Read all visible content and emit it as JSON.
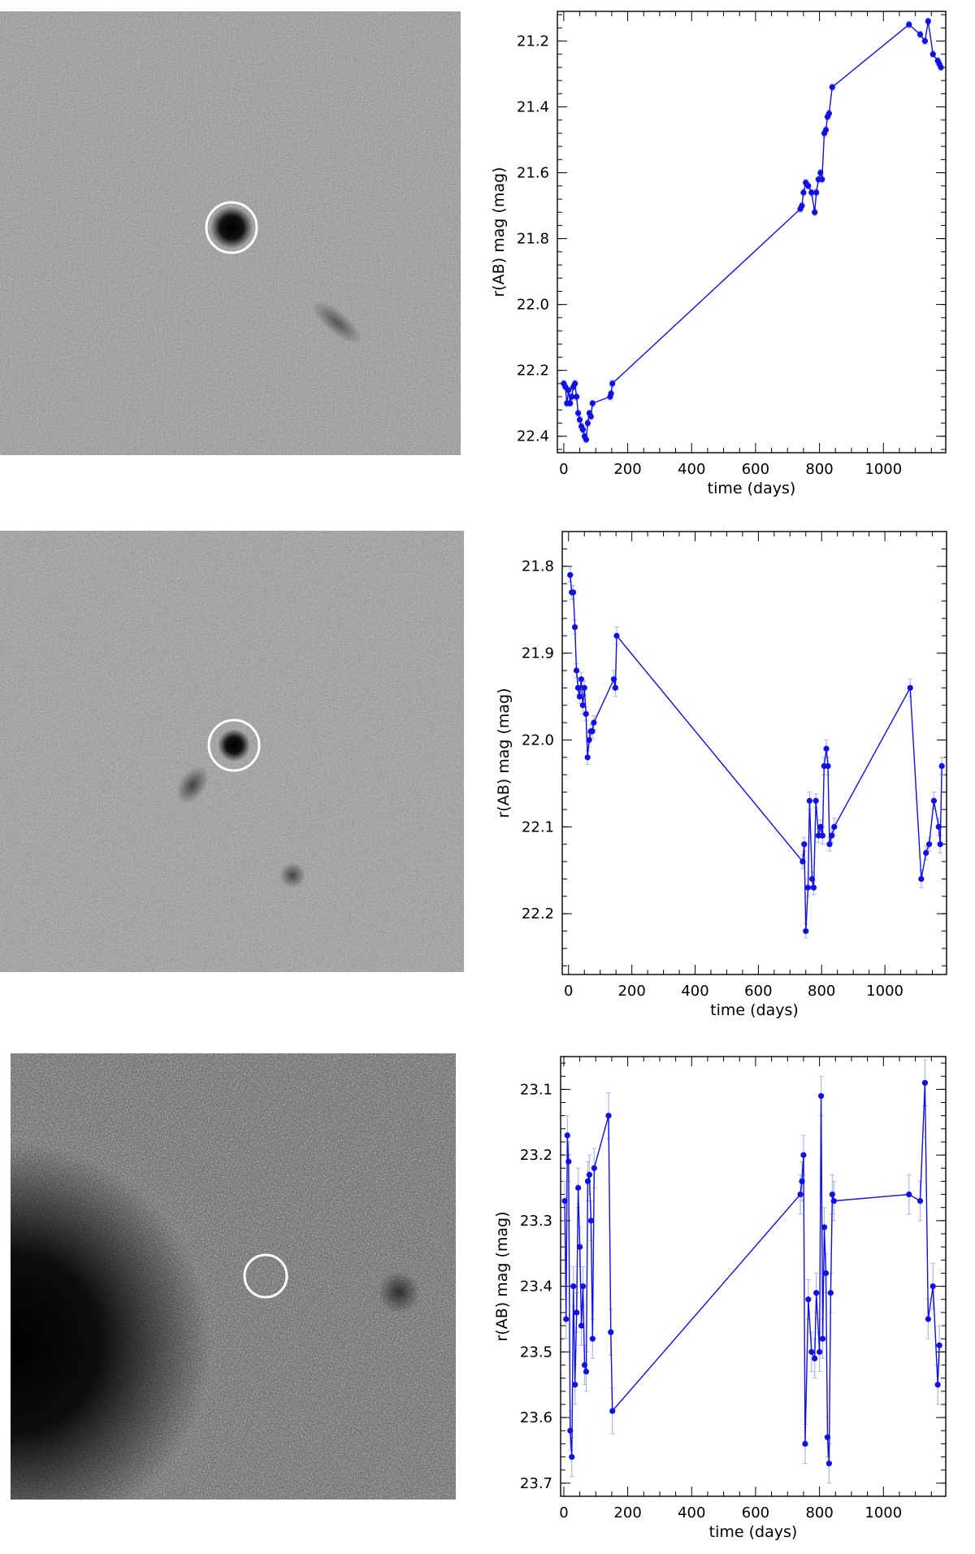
{
  "colors": {
    "series": "#1010e0",
    "error_bar": "#b0b8e8",
    "axis": "#000000",
    "marker_circle": "#ffffff"
  },
  "chart_data": [
    {
      "type": "line",
      "xlabel": "time (days)",
      "ylabel": "r(AB) mag (mag)",
      "xlim": [
        -20,
        1195
      ],
      "ylim": [
        22.45,
        21.11
      ],
      "y_inverted": true,
      "xticks": [
        0,
        200,
        400,
        600,
        800,
        1000
      ],
      "yticks": [
        21.2,
        21.4,
        21.6,
        21.8,
        22.0,
        22.2,
        22.4
      ],
      "ytick_labels": [
        "21.2",
        "21.4",
        "21.6",
        "21.8",
        "22.0",
        "22.2",
        "22.4"
      ],
      "grid": false,
      "series": [
        {
          "x": [
            0,
            5,
            10,
            15,
            20,
            25,
            30,
            35,
            40,
            45,
            50,
            55,
            60,
            65,
            70,
            75,
            80,
            85,
            90,
            145,
            148,
            152,
            740,
            745,
            750,
            757,
            765,
            775,
            785,
            790,
            797,
            803,
            808,
            815,
            820,
            825,
            830,
            840,
            1080,
            1115,
            1130,
            1140,
            1155,
            1170,
            1175,
            1180
          ],
          "y": [
            22.24,
            22.25,
            22.3,
            22.26,
            22.3,
            22.28,
            22.25,
            22.24,
            22.28,
            22.33,
            22.35,
            22.37,
            22.38,
            22.4,
            22.41,
            22.36,
            22.33,
            22.34,
            22.3,
            22.28,
            22.27,
            22.24,
            21.71,
            21.7,
            21.66,
            21.63,
            21.64,
            21.66,
            21.72,
            21.66,
            21.62,
            21.6,
            21.62,
            21.48,
            21.47,
            21.43,
            21.42,
            21.34,
            21.15,
            21.18,
            21.2,
            21.14,
            21.24,
            21.26,
            21.27,
            21.28
          ],
          "err": [
            0.01,
            0.01,
            0.01,
            0.01,
            0.01,
            0.01,
            0.01,
            0.01,
            0.01,
            0.01,
            0.01,
            0.01,
            0.01,
            0.01,
            0.01,
            0.01,
            0.01,
            0.01,
            0.01,
            0.01,
            0.01,
            0.01,
            0.01,
            0.01,
            0.01,
            0.01,
            0.01,
            0.01,
            0.01,
            0.01,
            0.01,
            0.01,
            0.01,
            0.01,
            0.01,
            0.01,
            0.01,
            0.01,
            0.01,
            0.01,
            0.01,
            0.01,
            0.01,
            0.01,
            0.01,
            0.01
          ]
        }
      ]
    },
    {
      "type": "line",
      "xlabel": "time (days)",
      "ylabel": "r(AB) mag (mag)",
      "xlim": [
        -20,
        1195
      ],
      "ylim": [
        22.27,
        21.76
      ],
      "y_inverted": true,
      "xticks": [
        0,
        200,
        400,
        600,
        800,
        1000
      ],
      "yticks": [
        21.8,
        21.9,
        22.0,
        22.1,
        22.2
      ],
      "ytick_labels": [
        "21.8",
        "21.9",
        "22.0",
        "22.1",
        "22.2"
      ],
      "grid": false,
      "series": [
        {
          "x": [
            5,
            10,
            15,
            20,
            25,
            30,
            35,
            40,
            45,
            50,
            55,
            60,
            65,
            70,
            75,
            80,
            143,
            148,
            152,
            740,
            745,
            750,
            757,
            762,
            770,
            775,
            782,
            790,
            797,
            803,
            808,
            815,
            820,
            825,
            832,
            840,
            1080,
            1115,
            1130,
            1140,
            1155,
            1170,
            1175,
            1180
          ],
          "y": [
            21.81,
            21.83,
            21.83,
            21.87,
            21.92,
            21.94,
            21.95,
            21.93,
            21.96,
            21.94,
            21.97,
            22.02,
            22.0,
            21.99,
            21.99,
            21.98,
            21.93,
            21.94,
            21.88,
            22.14,
            22.12,
            22.22,
            22.17,
            22.07,
            22.16,
            22.17,
            22.07,
            22.11,
            22.1,
            22.11,
            22.03,
            22.01,
            22.03,
            22.12,
            22.11,
            22.1,
            21.94,
            22.16,
            22.13,
            22.12,
            22.07,
            22.1,
            22.12,
            22.03
          ],
          "err": [
            0.008,
            0.008,
            0.008,
            0.008,
            0.008,
            0.008,
            0.008,
            0.008,
            0.01,
            0.008,
            0.008,
            0.008,
            0.008,
            0.008,
            0.008,
            0.008,
            0.01,
            0.01,
            0.01,
            0.008,
            0.008,
            0.008,
            0.01,
            0.01,
            0.008,
            0.008,
            0.008,
            0.008,
            0.008,
            0.01,
            0.01,
            0.01,
            0.01,
            0.008,
            0.008,
            0.01,
            0.01,
            0.01,
            0.008,
            0.008,
            0.01,
            0.01,
            0.01,
            0.01
          ]
        }
      ]
    },
    {
      "type": "line",
      "xlabel": "time (days)",
      "ylabel": "r(AB) mag (mag)",
      "xlim": [
        -10,
        1195
      ],
      "ylim": [
        23.72,
        23.05
      ],
      "y_inverted": true,
      "xticks": [
        0,
        200,
        400,
        600,
        800,
        1000
      ],
      "yticks": [
        23.1,
        23.2,
        23.3,
        23.4,
        23.5,
        23.6,
        23.7
      ],
      "ytick_labels": [
        "23.1",
        "23.2",
        "23.3",
        "23.4",
        "23.5",
        "23.6",
        "23.7"
      ],
      "grid": false,
      "series": [
        {
          "x": [
            3,
            7,
            11,
            15,
            20,
            25,
            30,
            35,
            40,
            45,
            50,
            55,
            60,
            65,
            70,
            75,
            80,
            85,
            90,
            95,
            140,
            147,
            152,
            740,
            745,
            750,
            755,
            765,
            775,
            785,
            790,
            800,
            805,
            810,
            815,
            820,
            825,
            830,
            835,
            840,
            845,
            1080,
            1115,
            1130,
            1140,
            1155,
            1170,
            1175
          ],
          "y": [
            23.27,
            23.45,
            23.17,
            23.21,
            23.62,
            23.66,
            23.4,
            23.55,
            23.44,
            23.25,
            23.34,
            23.46,
            23.4,
            23.52,
            23.53,
            23.24,
            23.23,
            23.3,
            23.48,
            23.22,
            23.14,
            23.47,
            23.59,
            23.26,
            23.24,
            23.2,
            23.64,
            23.42,
            23.5,
            23.51,
            23.41,
            23.5,
            23.11,
            23.48,
            23.31,
            23.38,
            23.63,
            23.67,
            23.41,
            23.26,
            23.27,
            23.26,
            23.27,
            23.09,
            23.45,
            23.4,
            23.55,
            23.49
          ],
          "err": [
            0.03,
            0.03,
            0.03,
            0.03,
            0.03,
            0.03,
            0.03,
            0.03,
            0.03,
            0.03,
            0.03,
            0.03,
            0.03,
            0.03,
            0.03,
            0.03,
            0.03,
            0.03,
            0.03,
            0.03,
            0.035,
            0.035,
            0.035,
            0.03,
            0.03,
            0.03,
            0.03,
            0.03,
            0.03,
            0.03,
            0.03,
            0.03,
            0.03,
            0.03,
            0.03,
            0.03,
            0.03,
            0.03,
            0.03,
            0.03,
            0.03,
            0.03,
            0.03,
            0.035,
            0.03,
            0.035,
            0.03,
            0.03
          ]
        }
      ]
    }
  ]
}
